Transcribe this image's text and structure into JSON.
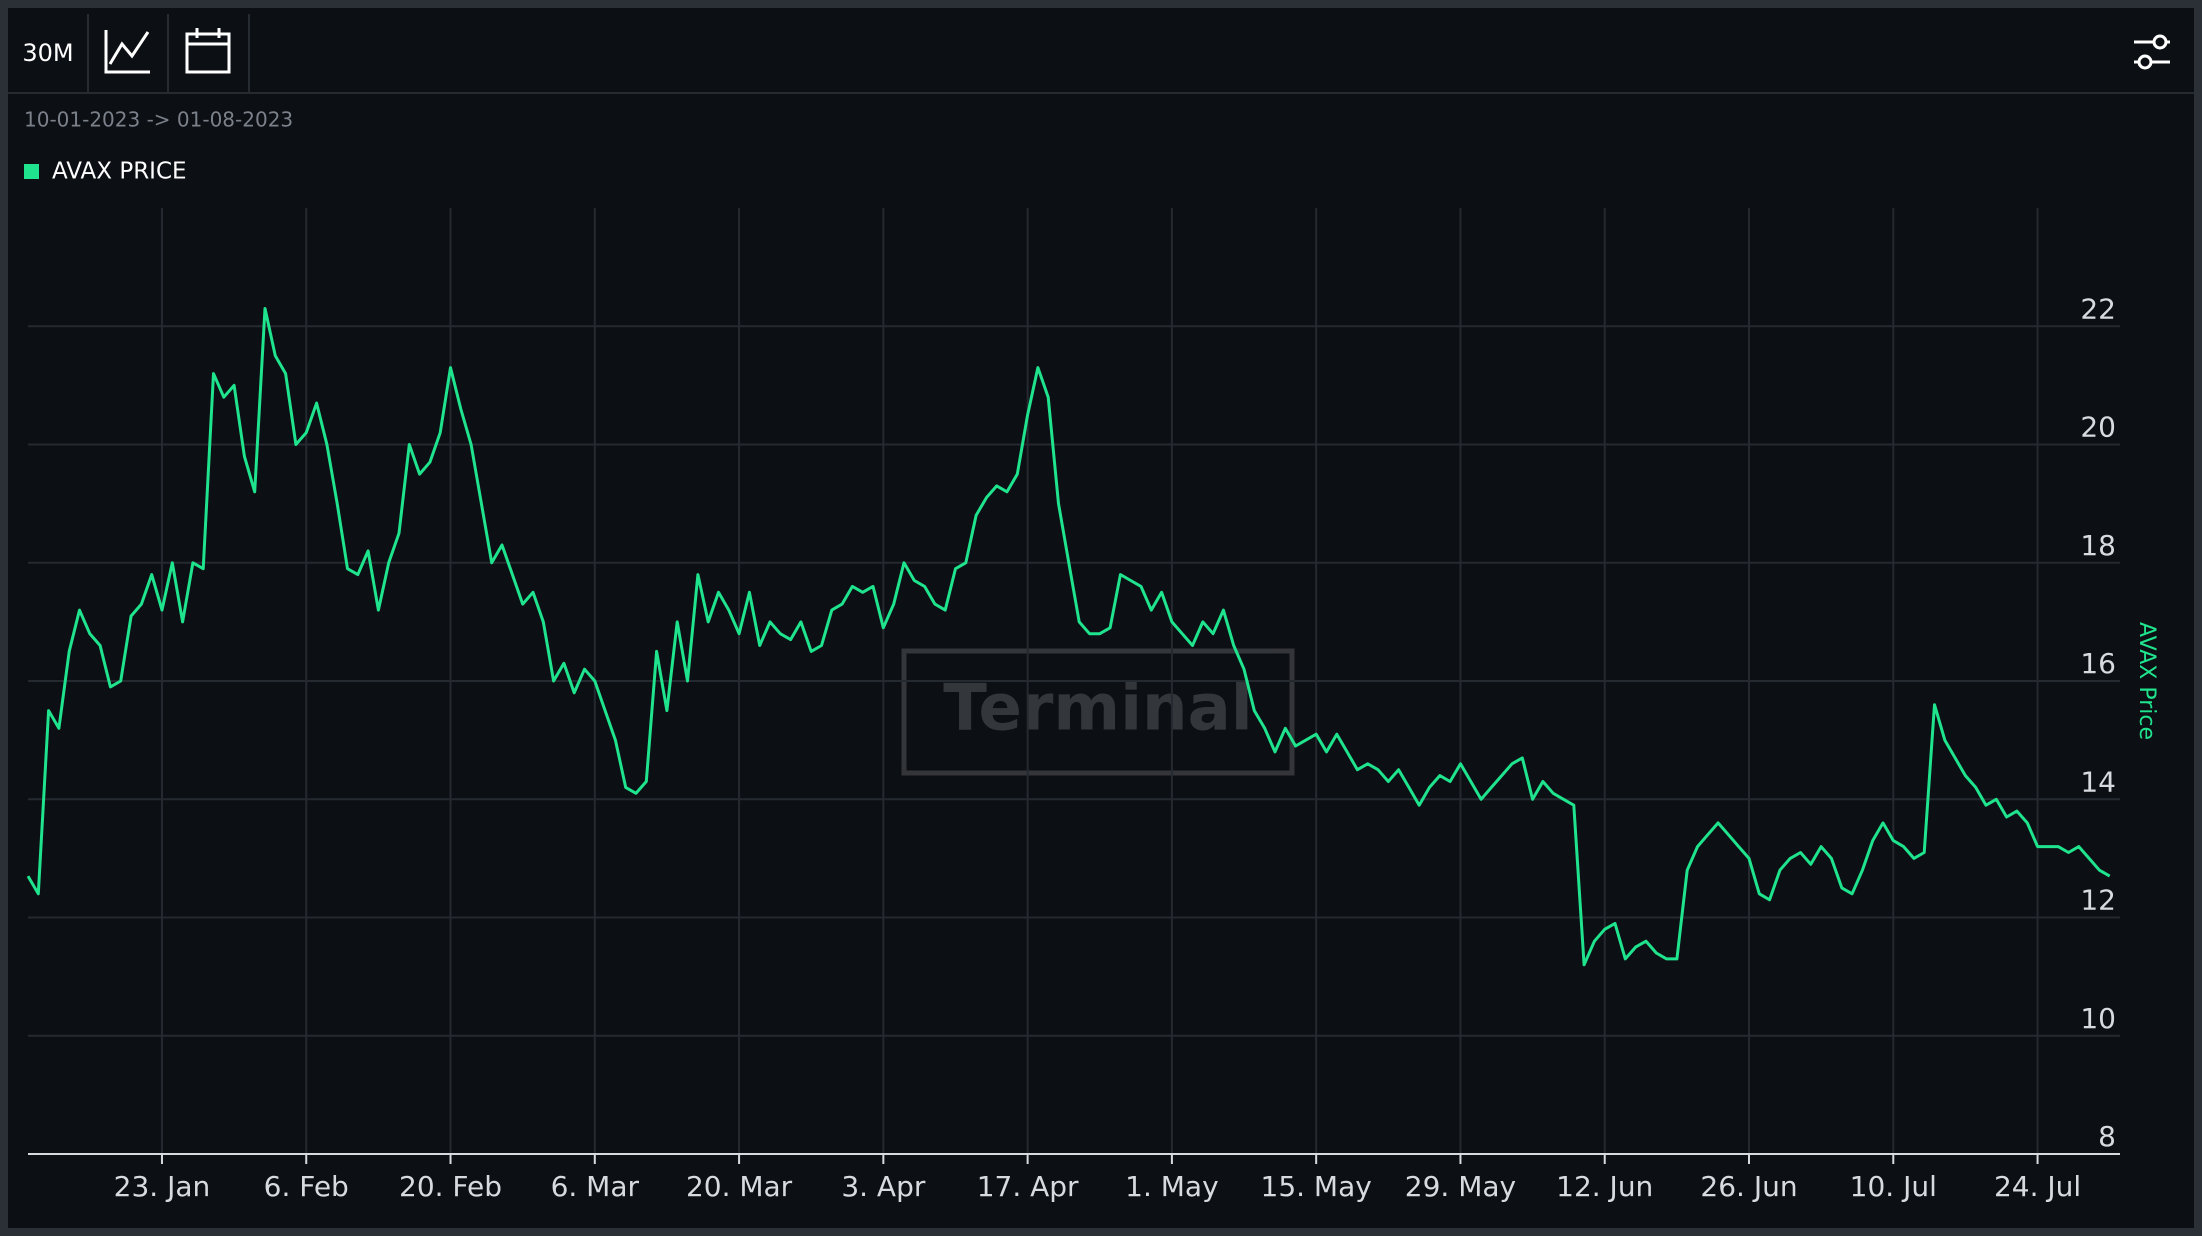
{
  "toolbar": {
    "interval": "30M"
  },
  "date_range": "10-01-2023 -> 01-08-2023",
  "chart_data": {
    "type": "line",
    "watermark": "Terminal",
    "y_label": "AVAX Price",
    "x": [
      "2023-01-10",
      "2023-01-11",
      "2023-01-12",
      "2023-01-13",
      "2023-01-14",
      "2023-01-15",
      "2023-01-16",
      "2023-01-17",
      "2023-01-18",
      "2023-01-19",
      "2023-01-20",
      "2023-01-21",
      "2023-01-22",
      "2023-01-23",
      "2023-01-24",
      "2023-01-25",
      "2023-01-26",
      "2023-01-27",
      "2023-01-28",
      "2023-01-29",
      "2023-01-30",
      "2023-01-31",
      "2023-02-01",
      "2023-02-02",
      "2023-02-03",
      "2023-02-04",
      "2023-02-05",
      "2023-02-06",
      "2023-02-07",
      "2023-02-08",
      "2023-02-09",
      "2023-02-10",
      "2023-02-11",
      "2023-02-12",
      "2023-02-13",
      "2023-02-14",
      "2023-02-15",
      "2023-02-16",
      "2023-02-17",
      "2023-02-18",
      "2023-02-19",
      "2023-02-20",
      "2023-02-21",
      "2023-02-22",
      "2023-02-23",
      "2023-02-24",
      "2023-02-25",
      "2023-02-26",
      "2023-02-27",
      "2023-02-28",
      "2023-03-01",
      "2023-03-02",
      "2023-03-03",
      "2023-03-04",
      "2023-03-05",
      "2023-03-06",
      "2023-03-07",
      "2023-03-08",
      "2023-03-09",
      "2023-03-10",
      "2023-03-11",
      "2023-03-12",
      "2023-03-13",
      "2023-03-14",
      "2023-03-15",
      "2023-03-16",
      "2023-03-17",
      "2023-03-18",
      "2023-03-19",
      "2023-03-20",
      "2023-03-21",
      "2023-03-22",
      "2023-03-23",
      "2023-03-24",
      "2023-03-25",
      "2023-03-26",
      "2023-03-27",
      "2023-03-28",
      "2023-03-29",
      "2023-03-30",
      "2023-03-31",
      "2023-04-01",
      "2023-04-02",
      "2023-04-03",
      "2023-04-04",
      "2023-04-05",
      "2023-04-06",
      "2023-04-07",
      "2023-04-08",
      "2023-04-09",
      "2023-04-10",
      "2023-04-11",
      "2023-04-12",
      "2023-04-13",
      "2023-04-14",
      "2023-04-15",
      "2023-04-16",
      "2023-04-17",
      "2023-04-18",
      "2023-04-19",
      "2023-04-20",
      "2023-04-21",
      "2023-04-22",
      "2023-04-23",
      "2023-04-24",
      "2023-04-25",
      "2023-04-26",
      "2023-04-27",
      "2023-04-28",
      "2023-04-29",
      "2023-04-30",
      "2023-05-01",
      "2023-05-02",
      "2023-05-03",
      "2023-05-04",
      "2023-05-05",
      "2023-05-06",
      "2023-05-07",
      "2023-05-08",
      "2023-05-09",
      "2023-05-10",
      "2023-05-11",
      "2023-05-12",
      "2023-05-13",
      "2023-05-14",
      "2023-05-15",
      "2023-05-16",
      "2023-05-17",
      "2023-05-18",
      "2023-05-19",
      "2023-05-20",
      "2023-05-21",
      "2023-05-22",
      "2023-05-23",
      "2023-05-24",
      "2023-05-25",
      "2023-05-26",
      "2023-05-27",
      "2023-05-28",
      "2023-05-29",
      "2023-05-30",
      "2023-05-31",
      "2023-06-01",
      "2023-06-02",
      "2023-06-03",
      "2023-06-04",
      "2023-06-05",
      "2023-06-06",
      "2023-06-07",
      "2023-06-08",
      "2023-06-09",
      "2023-06-10",
      "2023-06-11",
      "2023-06-12",
      "2023-06-13",
      "2023-06-14",
      "2023-06-15",
      "2023-06-16",
      "2023-06-17",
      "2023-06-18",
      "2023-06-19",
      "2023-06-20",
      "2023-06-21",
      "2023-06-22",
      "2023-06-23",
      "2023-06-24",
      "2023-06-25",
      "2023-06-26",
      "2023-06-27",
      "2023-06-28",
      "2023-06-29",
      "2023-06-30",
      "2023-07-01",
      "2023-07-02",
      "2023-07-03",
      "2023-07-04",
      "2023-07-05",
      "2023-07-06",
      "2023-07-07",
      "2023-07-08",
      "2023-07-09",
      "2023-07-10",
      "2023-07-11",
      "2023-07-12",
      "2023-07-13",
      "2023-07-14",
      "2023-07-15",
      "2023-07-16",
      "2023-07-17",
      "2023-07-18",
      "2023-07-19",
      "2023-07-20",
      "2023-07-21",
      "2023-07-22",
      "2023-07-23",
      "2023-07-24",
      "2023-07-25",
      "2023-07-26",
      "2023-07-27",
      "2023-07-28",
      "2023-07-29",
      "2023-07-30",
      "2023-07-31"
    ],
    "series": [
      {
        "name": "AVAX PRICE",
        "color": "#1fe38d",
        "values": [
          12.7,
          12.4,
          15.5,
          15.2,
          16.5,
          17.2,
          16.8,
          16.6,
          15.9,
          16.0,
          17.1,
          17.3,
          17.8,
          17.2,
          18.0,
          17.0,
          18.0,
          17.9,
          21.2,
          20.8,
          21.0,
          19.8,
          19.2,
          22.3,
          21.5,
          21.2,
          20.0,
          20.2,
          20.7,
          20.0,
          19.0,
          17.9,
          17.8,
          18.2,
          17.2,
          18.0,
          18.5,
          20.0,
          19.5,
          19.7,
          20.2,
          21.3,
          20.6,
          20.0,
          19.0,
          18.0,
          18.3,
          17.8,
          17.3,
          17.5,
          17.0,
          16.0,
          16.3,
          15.8,
          16.2,
          16.0,
          15.5,
          15.0,
          14.2,
          14.1,
          14.3,
          16.5,
          15.5,
          17.0,
          16.0,
          17.8,
          17.0,
          17.5,
          17.2,
          16.8,
          17.5,
          16.6,
          17.0,
          16.8,
          16.7,
          17.0,
          16.5,
          16.6,
          17.2,
          17.3,
          17.6,
          17.5,
          17.6,
          16.9,
          17.3,
          18.0,
          17.7,
          17.6,
          17.3,
          17.2,
          17.9,
          18.0,
          18.8,
          19.1,
          19.3,
          19.2,
          19.5,
          20.5,
          21.3,
          20.8,
          19.0,
          18.0,
          17.0,
          16.8,
          16.8,
          16.9,
          17.8,
          17.7,
          17.6,
          17.2,
          17.5,
          17.0,
          16.8,
          16.6,
          17.0,
          16.8,
          17.2,
          16.6,
          16.2,
          15.5,
          15.2,
          14.8,
          15.2,
          14.9,
          15.0,
          15.1,
          14.8,
          15.1,
          14.8,
          14.5,
          14.6,
          14.5,
          14.3,
          14.5,
          14.2,
          13.9,
          14.2,
          14.4,
          14.3,
          14.6,
          14.3,
          14.0,
          14.2,
          14.4,
          14.6,
          14.7,
          14.0,
          14.3,
          14.1,
          14.0,
          13.9,
          11.2,
          11.6,
          11.8,
          11.9,
          11.3,
          11.5,
          11.6,
          11.4,
          11.3,
          11.3,
          12.8,
          13.2,
          13.4,
          13.6,
          13.4,
          13.2,
          13.0,
          12.4,
          12.3,
          12.8,
          13.0,
          13.1,
          12.9,
          13.2,
          13.0,
          12.5,
          12.4,
          12.8,
          13.3,
          13.6,
          13.3,
          13.2,
          13.0,
          13.1,
          15.6,
          15.0,
          14.7,
          14.4,
          14.2,
          13.9,
          14.0,
          13.7,
          13.8,
          13.6,
          13.2,
          13.2,
          13.2,
          13.1,
          13.2,
          13.0,
          12.8,
          12.7
        ]
      }
    ],
    "xlim": [
      "2023-01-10",
      "2023-08-01"
    ],
    "xticks": [
      {
        "value": "2023-01-23",
        "label": "23. Jan"
      },
      {
        "value": "2023-02-06",
        "label": "6. Feb"
      },
      {
        "value": "2023-02-20",
        "label": "20. Feb"
      },
      {
        "value": "2023-03-06",
        "label": "6. Mar"
      },
      {
        "value": "2023-03-20",
        "label": "20. Mar"
      },
      {
        "value": "2023-04-03",
        "label": "3. Apr"
      },
      {
        "value": "2023-04-17",
        "label": "17. Apr"
      },
      {
        "value": "2023-05-01",
        "label": "1. May"
      },
      {
        "value": "2023-05-15",
        "label": "15. May"
      },
      {
        "value": "2023-05-29",
        "label": "29. May"
      },
      {
        "value": "2023-06-12",
        "label": "12. Jun"
      },
      {
        "value": "2023-06-26",
        "label": "26. Jun"
      },
      {
        "value": "2023-07-10",
        "label": "10. Jul"
      },
      {
        "value": "2023-07-24",
        "label": "24. Jul"
      }
    ],
    "ylim": [
      8,
      24
    ],
    "yticks": [
      8,
      10,
      12,
      14,
      16,
      18,
      20,
      22
    ],
    "grid": true
  }
}
